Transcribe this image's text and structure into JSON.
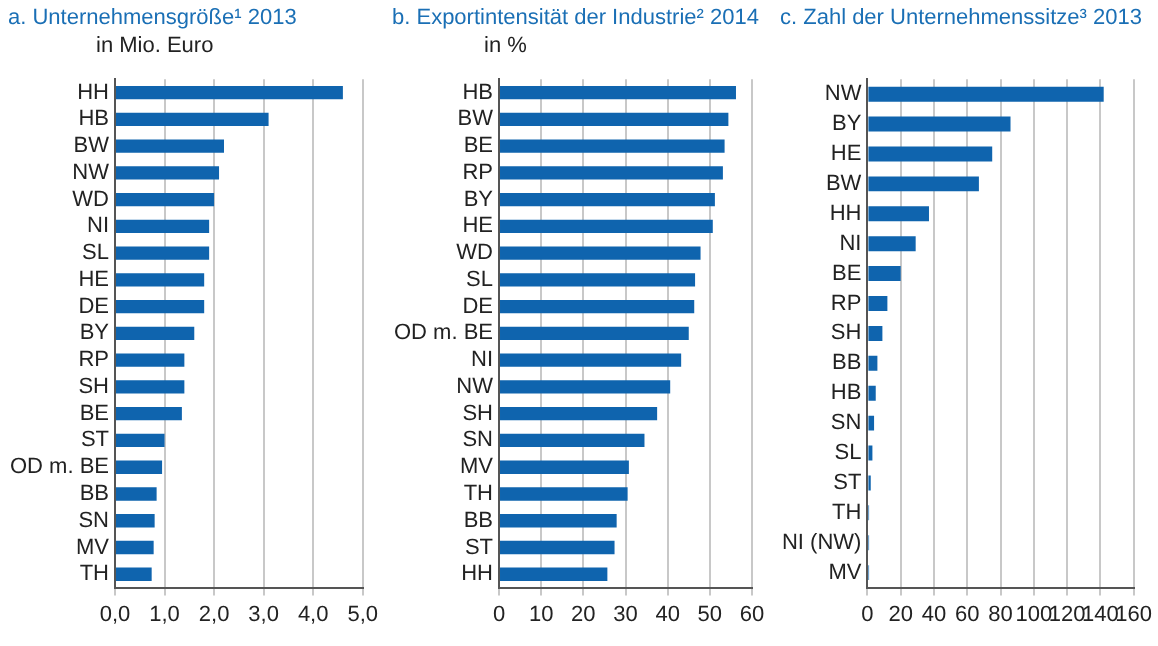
{
  "chart_data": [
    {
      "type": "bar",
      "orientation": "horizontal",
      "title": "a. Unternehmensgröße¹ 2013",
      "subtitle": "in Mio. Euro",
      "categories": [
        "HH",
        "HB",
        "BW",
        "NW",
        "WD",
        "NI",
        "SL",
        "HE",
        "DE",
        "BY",
        "RP",
        "SH",
        "BE",
        "ST",
        "OD m. BE",
        "BB",
        "SN",
        "MV",
        "TH"
      ],
      "values": [
        4.6,
        3.1,
        2.2,
        2.1,
        2.0,
        1.9,
        1.9,
        1.8,
        1.8,
        1.6,
        1.4,
        1.4,
        1.35,
        1.0,
        0.95,
        0.84,
        0.8,
        0.78,
        0.74
      ],
      "color": "#0f64ae",
      "xlim": [
        0,
        5
      ],
      "xticks": [
        {
          "value": 0,
          "label": "0,0"
        },
        {
          "value": 1,
          "label": "1,0"
        },
        {
          "value": 2,
          "label": "2,0"
        },
        {
          "value": 3,
          "label": "3,0"
        },
        {
          "value": 4,
          "label": "4,0"
        },
        {
          "value": 5,
          "label": "5,0"
        }
      ],
      "grid": "x",
      "legend": false
    },
    {
      "type": "bar",
      "orientation": "horizontal",
      "title": "b. Exportintensität der Industrie² 2014",
      "subtitle": "in %",
      "categories": [
        "HB",
        "BW",
        "BE",
        "RP",
        "BY",
        "HE",
        "WD",
        "SL",
        "DE",
        "OD m. BE",
        "NI",
        "NW",
        "SH",
        "SN",
        "MV",
        "TH",
        "BB",
        "ST",
        "HH"
      ],
      "values": [
        56.2,
        54.4,
        53.5,
        53.1,
        51.2,
        50.7,
        47.8,
        46.5,
        46.3,
        45,
        43.2,
        40.6,
        37.5,
        34.5,
        30.8,
        30.5,
        27.9,
        27.4,
        25.7
      ],
      "color": "#0f64ae",
      "xlim": [
        0,
        60
      ],
      "xticks": [
        0,
        10,
        20,
        30,
        40,
        50,
        60
      ],
      "grid": "x",
      "legend": false
    },
    {
      "type": "bar",
      "orientation": "horizontal",
      "title": "c. Zahl der Unternehmenssitze³ 2013",
      "categories": [
        "NW",
        "BY",
        "HE",
        "BW",
        "HH",
        "NI",
        "BE",
        "RP",
        "SH",
        "BB",
        "HB",
        "SN",
        "SL",
        "ST",
        "TH",
        "NI (NW)",
        "MV"
      ],
      "values": [
        142,
        86,
        75,
        67,
        37,
        29,
        20,
        12,
        9,
        6,
        5,
        4,
        3,
        2,
        1,
        1,
        1
      ],
      "color": "#0f64ae",
      "xlim": [
        0,
        160
      ],
      "xticks": [
        0,
        20,
        40,
        60,
        80,
        100,
        120,
        140,
        160
      ],
      "grid": "x",
      "legend": false
    }
  ]
}
